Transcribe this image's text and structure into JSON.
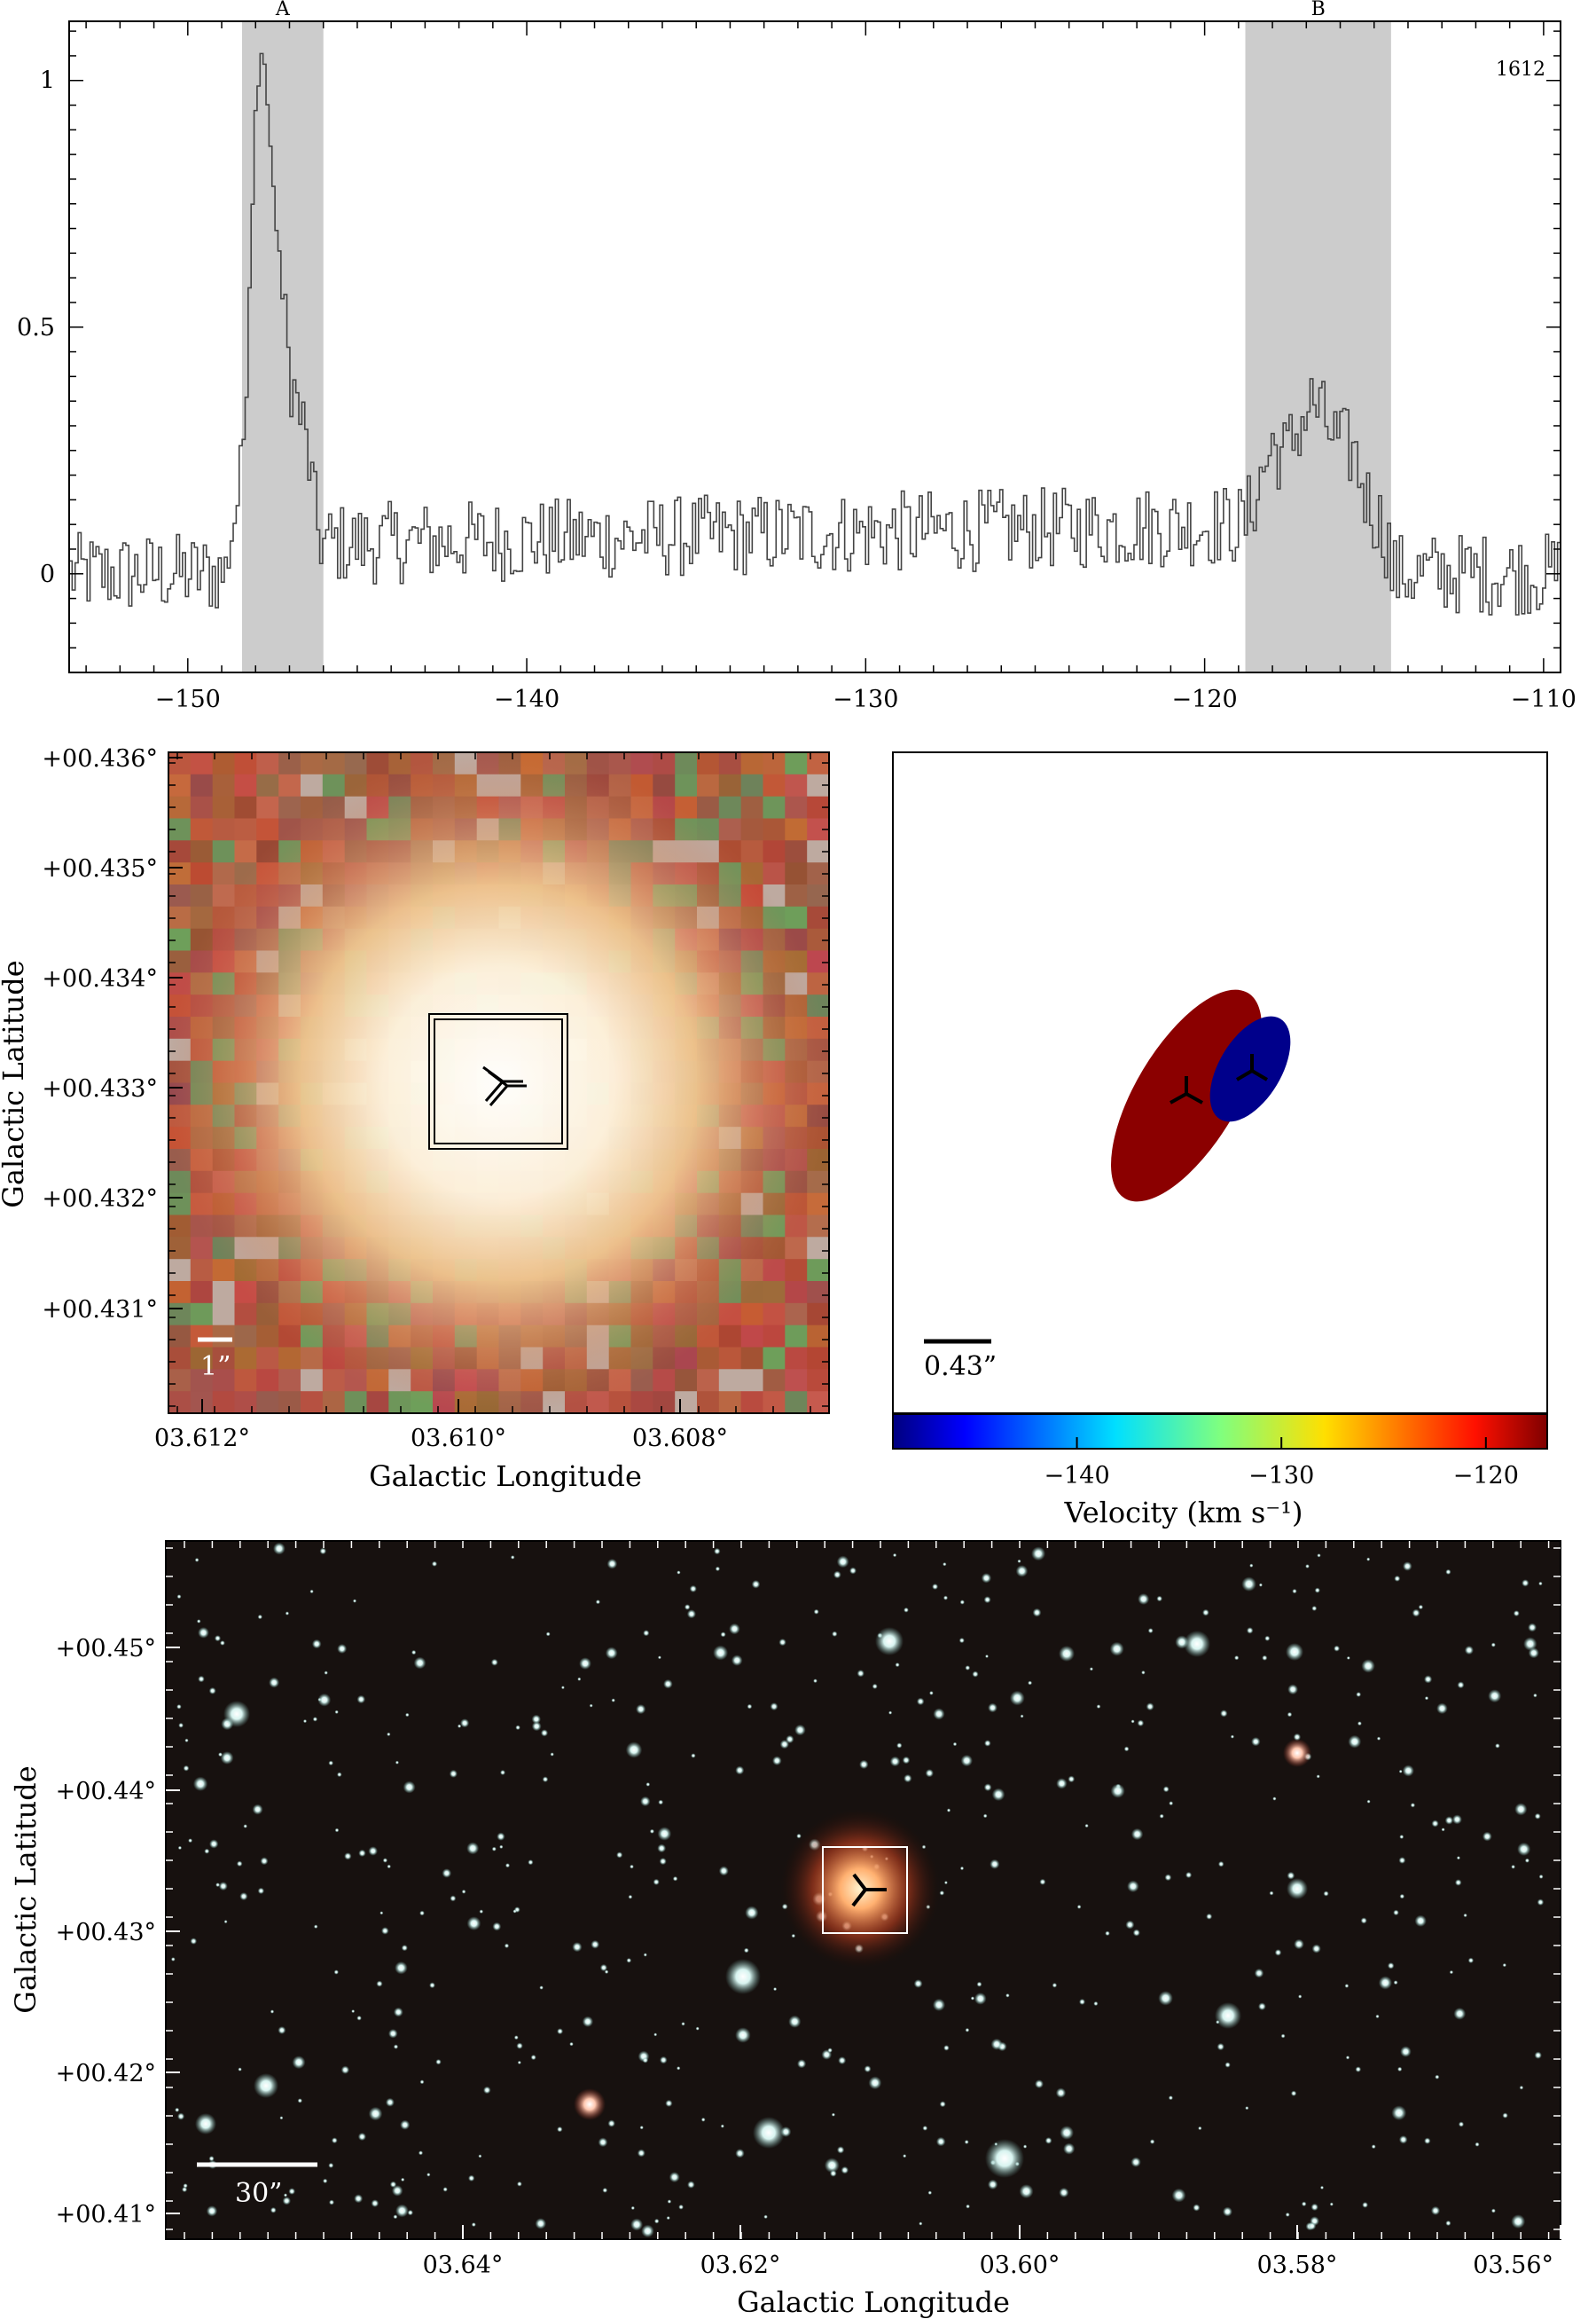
{
  "panels": {
    "spectrum": {
      "chart_data": {
        "type": "line",
        "style": "step",
        "xlim": [
          -153.5,
          -109.5
        ],
        "ylim": [
          -0.2,
          1.12
        ],
        "x_ticks": [
          -150,
          -140,
          -130,
          -120,
          -110
        ],
        "x_tick_labels": [
          "−150",
          "−140",
          "−130",
          "−120",
          "−110"
        ],
        "y_ticks": [
          0,
          0.5,
          1
        ],
        "y_tick_labels": [
          "0",
          "0.5",
          "1"
        ],
        "label": "1612",
        "bands": [
          {
            "name": "A",
            "x0": -148.4,
            "x1": -146.0
          },
          {
            "name": "B",
            "x0": -118.8,
            "x1": -114.5
          }
        ],
        "series": [
          {
            "line_color": "#444444",
            "points": [
              [
                -148.8,
                0.05
              ],
              [
                -148.4,
                0.2
              ],
              [
                -148.2,
                0.55
              ],
              [
                -148.0,
                0.95
              ],
              [
                -147.8,
                1.07
              ],
              [
                -147.6,
                0.9
              ],
              [
                -147.4,
                0.72
              ],
              [
                -147.2,
                0.55
              ],
              [
                -147.0,
                0.42
              ],
              [
                -146.8,
                0.35
              ],
              [
                -146.6,
                0.3
              ],
              [
                -146.4,
                0.22
              ],
              [
                -146.2,
                0.1
              ],
              [
                -146.0,
                0.06
              ],
              [
                -118.8,
                0.1
              ],
              [
                -118.4,
                0.18
              ],
              [
                -118.0,
                0.26
              ],
              [
                -117.6,
                0.24
              ],
              [
                -117.2,
                0.3
              ],
              [
                -116.8,
                0.35
              ],
              [
                -116.4,
                0.3
              ],
              [
                -116.0,
                0.26
              ],
              [
                -115.6,
                0.25
              ],
              [
                -115.2,
                0.15
              ],
              [
                -114.8,
                0.1
              ],
              [
                -114.5,
                0.05
              ]
            ],
            "noise_rms": 0.06
          }
        ]
      }
    },
    "image_zoom": {
      "xlabel": "Galactic Longitude",
      "ylabel": "Galactic Latitude",
      "x_tick_labels": [
        "03.612°",
        "03.610°",
        "03.608°"
      ],
      "y_tick_labels": [
        "+00.436°",
        "+00.435°",
        "+00.434°",
        "+00.433°",
        "+00.432°",
        "+00.431°"
      ],
      "scalebar": "1”"
    },
    "ellipses": {
      "chart_data": {
        "type": "other",
        "colorbar": {
          "label": "Velocity (km s⁻¹)",
          "range": [
            -149,
            -117
          ],
          "ticks": [
            -140,
            -130,
            -120
          ],
          "tick_labels": [
            "−140",
            "−130",
            "−120"
          ]
        },
        "components": [
          {
            "velocity": -118,
            "color": "#8b0000"
          },
          {
            "velocity": -148,
            "color": "#00008b"
          }
        ],
        "scalebar": "0.43”"
      }
    },
    "image_wide": {
      "xlabel": "Galactic Longitude",
      "ylabel": "Galactic Latitude",
      "x_tick_labels": [
        "03.64°",
        "03.62°",
        "03.60°",
        "03.58°",
        "03.56°"
      ],
      "y_tick_labels": [
        "+00.45°",
        "+00.44°",
        "+00.43°",
        "+00.42°",
        "+00.41°"
      ],
      "scalebar": "30”"
    }
  }
}
